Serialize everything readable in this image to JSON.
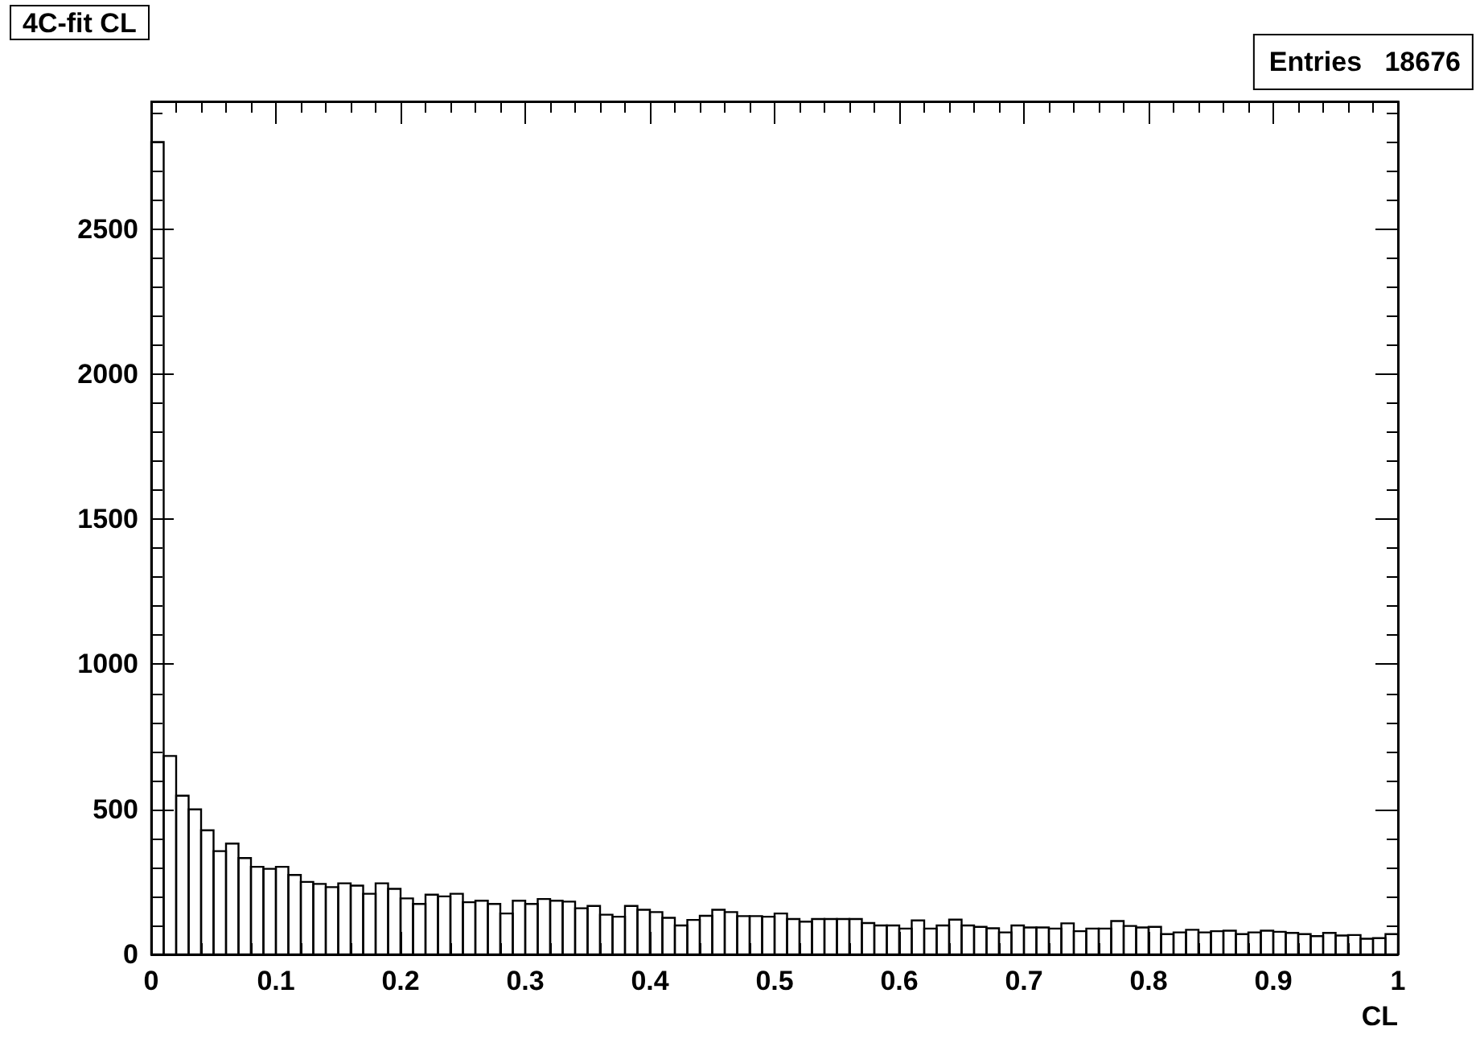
{
  "chart_data": {
    "type": "histogram",
    "title": "4C-fit CL",
    "xlabel": "CL",
    "annotations": [
      "Entries   18676"
    ],
    "bins": [
      0,
      0.01,
      0.02,
      0.03,
      0.04,
      0.05,
      0.06,
      0.07,
      0.08,
      0.09,
      0.1,
      0.11,
      0.12,
      0.13,
      0.14,
      0.15,
      0.16,
      0.17,
      0.18,
      0.19,
      0.2,
      0.21,
      0.22,
      0.23,
      0.24,
      0.25,
      0.26,
      0.27,
      0.28,
      0.29,
      0.3,
      0.31,
      0.32,
      0.33,
      0.34,
      0.35,
      0.36,
      0.37,
      0.38,
      0.39,
      0.4,
      0.41,
      0.42,
      0.43,
      0.44,
      0.45,
      0.46,
      0.47,
      0.48,
      0.49,
      0.5,
      0.51,
      0.52,
      0.53,
      0.54,
      0.55,
      0.56,
      0.57,
      0.58,
      0.59,
      0.6,
      0.61,
      0.62,
      0.63,
      0.64,
      0.65,
      0.66,
      0.67,
      0.68,
      0.69,
      0.7,
      0.71,
      0.72,
      0.73,
      0.74,
      0.75,
      0.76,
      0.77,
      0.78,
      0.79,
      0.8,
      0.81,
      0.82,
      0.83,
      0.84,
      0.85,
      0.86,
      0.87,
      0.88,
      0.89,
      0.9,
      0.91,
      0.92,
      0.93,
      0.94,
      0.95,
      0.96,
      0.97,
      0.98,
      0.99,
      1
    ],
    "values": [
      2800,
      684,
      547,
      500,
      428,
      356,
      382,
      332,
      302,
      295,
      302,
      274,
      250,
      243,
      232,
      245,
      237,
      209,
      245,
      226,
      193,
      174,
      206,
      200,
      209,
      180,
      185,
      174,
      141,
      185,
      174,
      191,
      185,
      182,
      159,
      167,
      137,
      130,
      167,
      154,
      146,
      126,
      100,
      119,
      133,
      154,
      146,
      132,
      132,
      130,
      141,
      122,
      113,
      122,
      122,
      122,
      122,
      108,
      100,
      100,
      89,
      117,
      89,
      100,
      120,
      100,
      95,
      90,
      76,
      100,
      93,
      93,
      89,
      107,
      80,
      89,
      89,
      115,
      98,
      93,
      95,
      70,
      76,
      85,
      76,
      80,
      82,
      70,
      76,
      82,
      78,
      74,
      70,
      63,
      74,
      65,
      67,
      54,
      56,
      70
    ],
    "color": "#000000",
    "xlim": [
      0,
      1
    ],
    "ylim": [
      0,
      2940
    ],
    "xticks": [
      {
        "value": 0,
        "label": "0"
      },
      0.1,
      0.2,
      0.3,
      0.4,
      0.5,
      0.6,
      0.7,
      0.8,
      0.9,
      {
        "value": 1,
        "label": "1"
      }
    ],
    "yticks": [
      0,
      500,
      1000,
      1500,
      2000,
      2500
    ],
    "grid": false
  }
}
